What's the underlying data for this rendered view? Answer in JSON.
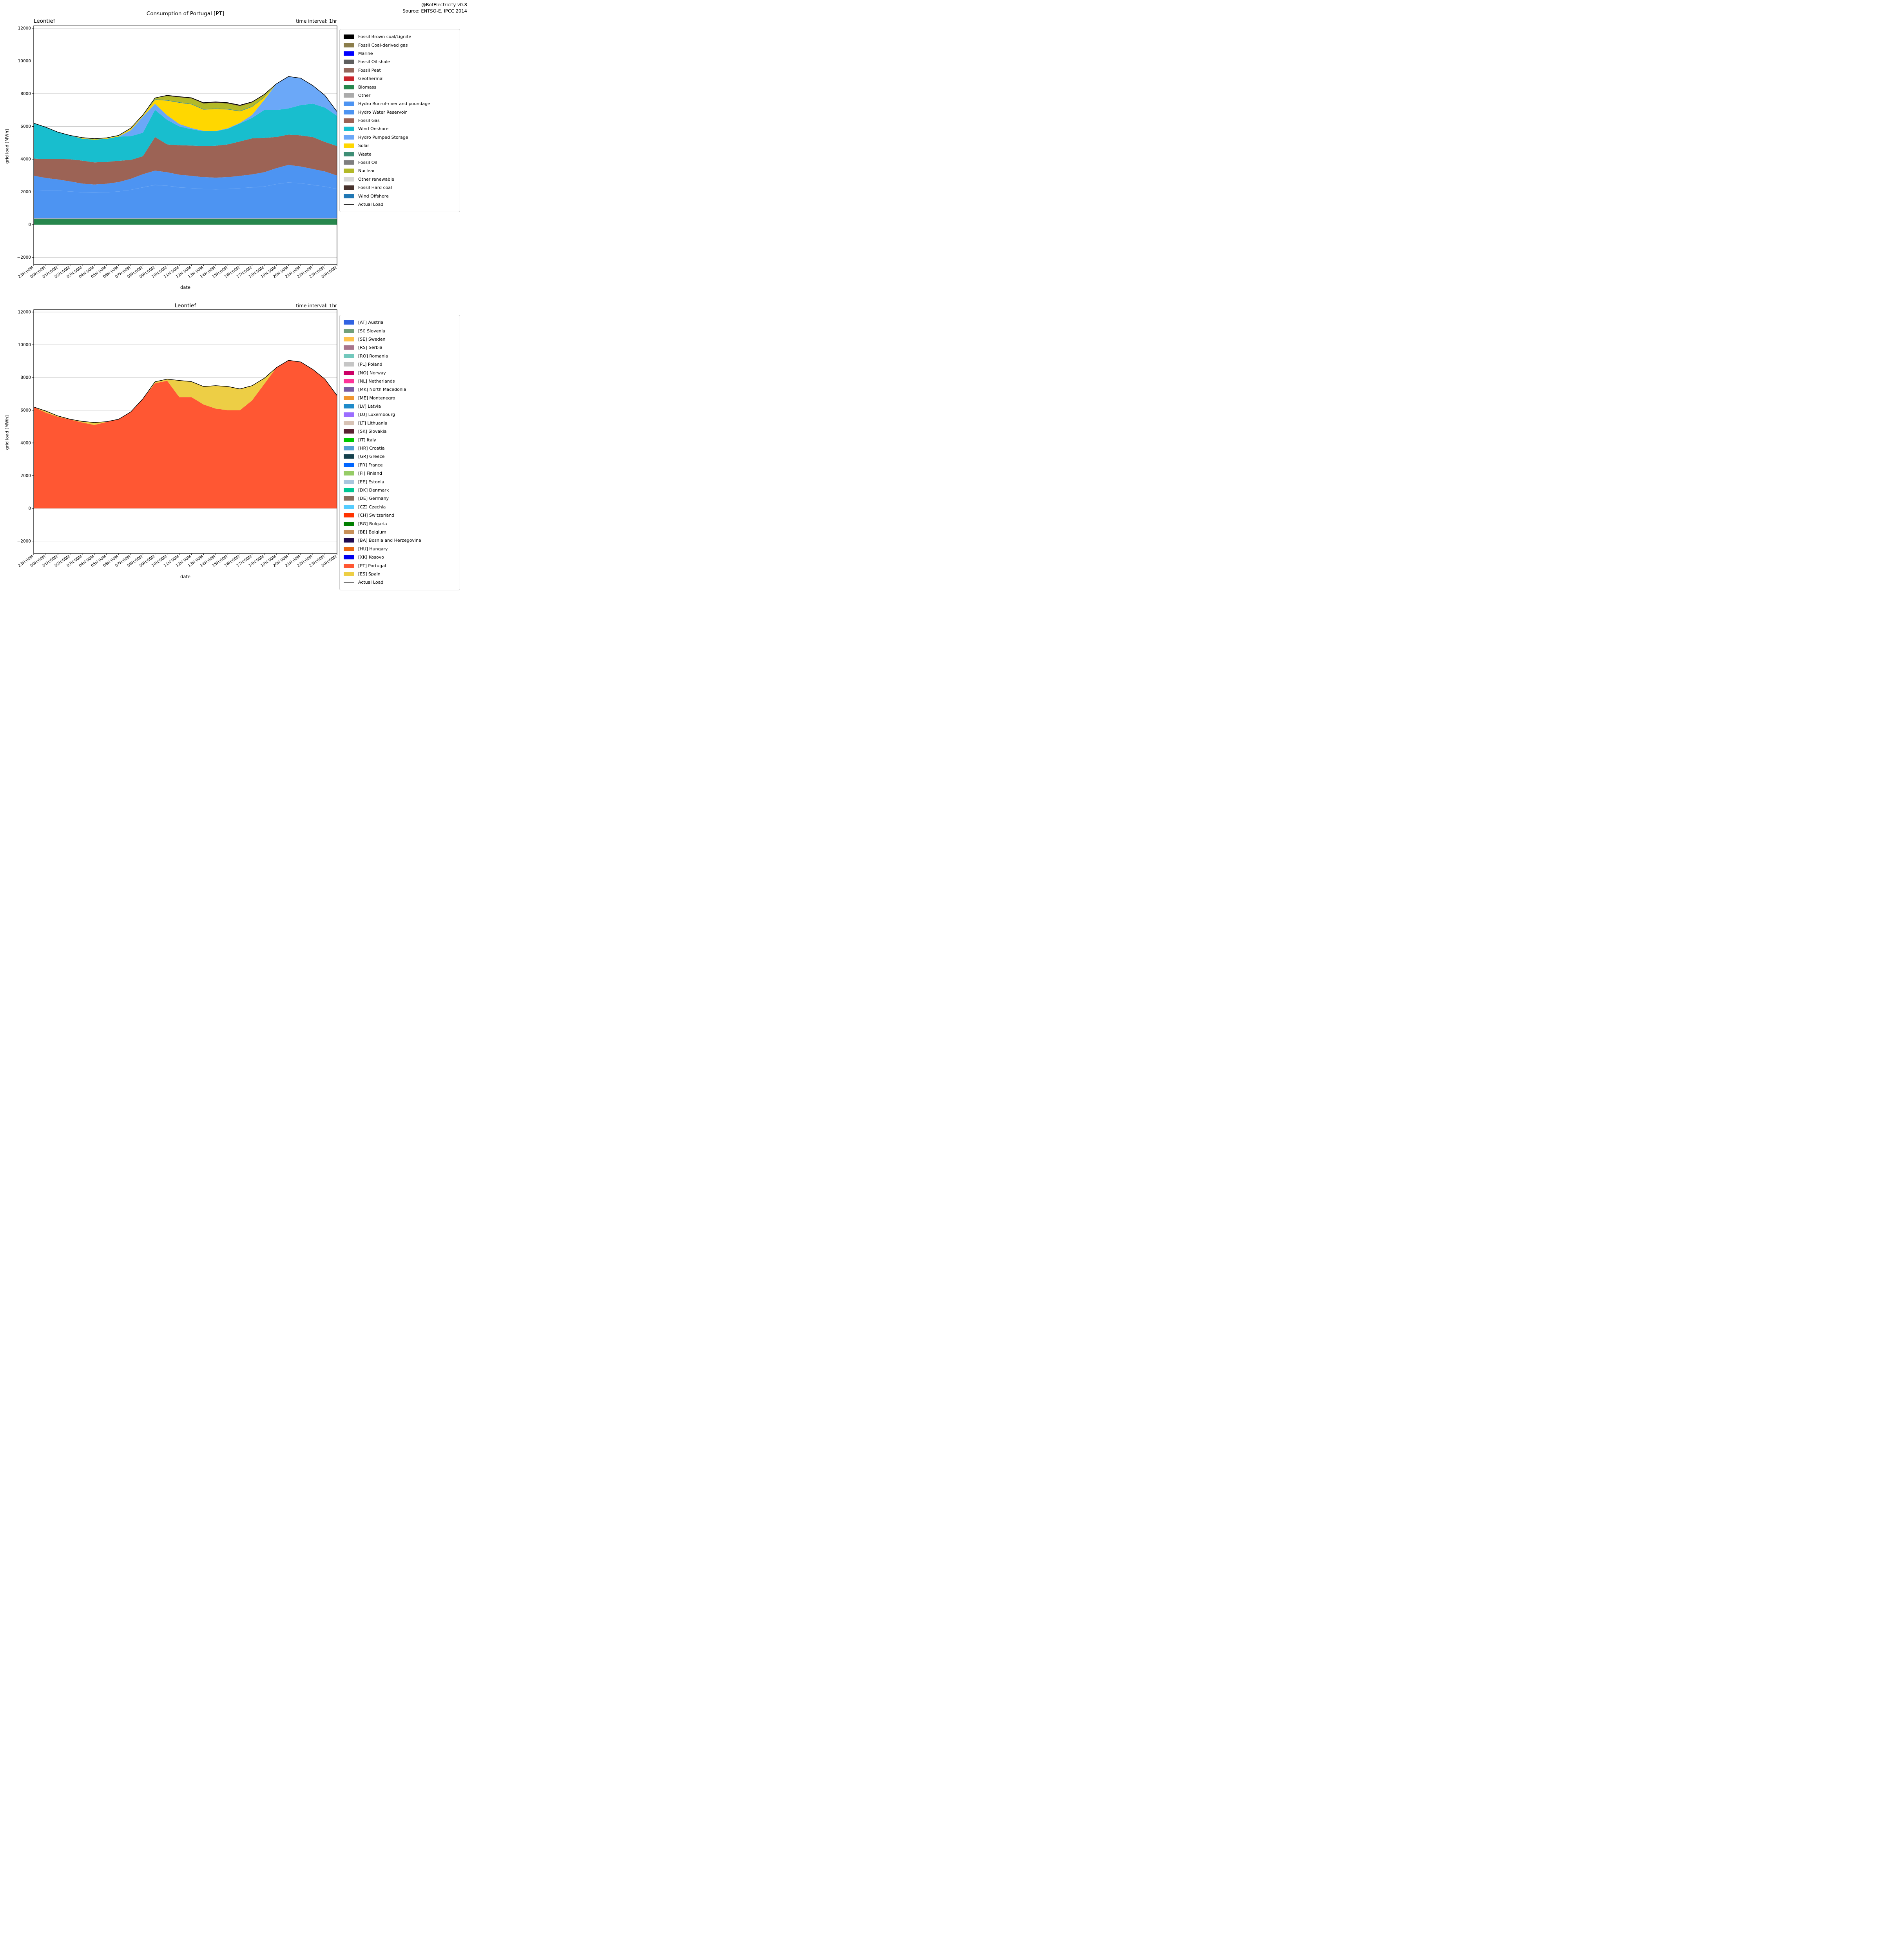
{
  "header": {
    "line1": "@BotElectricity v0.8",
    "line2": "Source: ENTSO-E, IPCC 2014"
  },
  "chart_data": [
    {
      "type": "area",
      "stacked": true,
      "title": "Consumption of Portugal [PT]",
      "subtitle_left": "Leontief",
      "subtitle_right": "time interval: 1hr",
      "xlabel": "date",
      "ylabel": "grid load [MWh]",
      "legend_position": "right",
      "grid": true,
      "ylim": [
        -2450,
        12150
      ],
      "yticks": [
        -2000,
        0,
        2000,
        4000,
        6000,
        8000,
        10000,
        12000
      ],
      "x_labels": [
        "23H:00M",
        "00H:00M",
        "01H:00M",
        "02H:00M",
        "03H:00M",
        "04H:00M",
        "05H:00M",
        "06H:00M",
        "07H:00M",
        "08H:00M",
        "09H:00M",
        "10H:00M",
        "11H:00M",
        "12H:00M",
        "13H:00M",
        "14H:00M",
        "15H:00M",
        "16H:00M",
        "17H:00M",
        "18H:00M",
        "19H:00M",
        "20H:00M",
        "21H:00M",
        "22H:00M",
        "23H:00M",
        "00H:00M"
      ],
      "series": [
        {
          "name": "Fossil Brown coal/Lignite",
          "color": "#000000",
          "values": 0
        },
        {
          "name": "Fossil Coal-derived gas",
          "color": "#8B7D4B",
          "values": 0
        },
        {
          "name": "Marine",
          "color": "#0000FF",
          "values": 0
        },
        {
          "name": "Fossil Oil shale",
          "color": "#5E5E5E",
          "values": 0
        },
        {
          "name": "Fossil Peat",
          "color": "#95675C",
          "values": 0
        },
        {
          "name": "Geothermal",
          "color": "#C9252C",
          "values": 0
        },
        {
          "name": "Biomass",
          "color": "#27874D",
          "values": 340
        },
        {
          "name": "Other",
          "color": "#ABABAB",
          "values": 40
        },
        {
          "name": "Hydro Run-of-river and poundage",
          "color": "#4D94F2",
          "edge": "#8FBCF5",
          "values": [
            1750,
            1720,
            1700,
            1650,
            1600,
            1580,
            1600,
            1650,
            1750,
            1900,
            2050,
            2000,
            1900,
            1850,
            1800,
            1780,
            1800,
            1850,
            1900,
            1950,
            2100,
            2200,
            2150,
            2050,
            1950,
            1800
          ]
        },
        {
          "name": "Hydro Water Reservoir",
          "color": "#4D94F2",
          "values": [
            860,
            750,
            680,
            610,
            530,
            490,
            520,
            570,
            670,
            800,
            870,
            820,
            770,
            750,
            720,
            710,
            720,
            750,
            790,
            870,
            970,
            1070,
            1020,
            970,
            920,
            820
          ]
        },
        {
          "name": "Fossil Gas",
          "color": "#9C6355",
          "values": [
            1050,
            1150,
            1250,
            1350,
            1400,
            1350,
            1330,
            1300,
            1150,
            1100,
            2050,
            1700,
            1800,
            1850,
            1900,
            1950,
            2000,
            2100,
            2200,
            2100,
            1900,
            1850,
            1900,
            1950,
            1800,
            1800
          ]
        },
        {
          "name": "Wind Onshore",
          "color": "#18BECE",
          "values": [
            2160,
            1950,
            1640,
            1460,
            1340,
            1390,
            1410,
            1480,
            1450,
            1430,
            1660,
            1500,
            1150,
            1000,
            900,
            880,
            950,
            1100,
            1250,
            1700,
            1650,
            1600,
            1850,
            2040,
            2100,
            1850
          ]
        },
        {
          "name": "Hydro Pumped Storage",
          "color": "#6BA8F8",
          "values": [
            0,
            0,
            0,
            0,
            0,
            0,
            0,
            0,
            370,
            1000,
            370,
            280,
            150,
            70,
            30,
            20,
            40,
            40,
            180,
            620,
            1600,
            1950,
            1650,
            1110,
            750,
            250
          ]
        },
        {
          "name": "Solar",
          "color": "#FFD700",
          "edge": "#9FB8D8",
          "values": [
            0,
            0,
            0,
            0,
            30,
            40,
            40,
            50,
            100,
            60,
            250,
            900,
            1300,
            1450,
            1300,
            1350,
            1150,
            700,
            500,
            150,
            0,
            0,
            0,
            0,
            0,
            0
          ]
        },
        {
          "name": "Waste",
          "color": "#3E8E75",
          "values": [
            0,
            0,
            0,
            0,
            0,
            0,
            0,
            0,
            0,
            0,
            30,
            30,
            30,
            30,
            30,
            30,
            30,
            30,
            30,
            30,
            0,
            0,
            0,
            0,
            0,
            0
          ]
        },
        {
          "name": "Fossil Oil",
          "color": "#7F7F7F",
          "values": 0
        },
        {
          "name": "Nuclear",
          "color": "#B3B928",
          "values": [
            0,
            0,
            0,
            0,
            40,
            20,
            20,
            20,
            30,
            30,
            80,
            250,
            300,
            330,
            340,
            350,
            330,
            300,
            230,
            120,
            0,
            0,
            0,
            0,
            0,
            0
          ]
        },
        {
          "name": "Other renewable",
          "color": "#D9D9D9",
          "values": 0
        },
        {
          "name": "Fossil Hard coal",
          "color": "#47322D",
          "values": [
            0,
            0,
            0,
            0,
            0,
            0,
            0,
            0,
            0,
            0,
            0,
            40,
            40,
            40,
            50,
            50,
            50,
            50,
            40,
            30,
            0,
            0,
            0,
            0,
            0,
            0
          ]
        },
        {
          "name": "Wind Offshore",
          "color": "#2077B4",
          "values": 0
        }
      ],
      "line": {
        "name": "Actual Load",
        "color": "#000000",
        "values": [
          6200,
          5950,
          5650,
          5450,
          5320,
          5250,
          5300,
          5450,
          5900,
          6700,
          7740,
          7900,
          7820,
          7750,
          7450,
          7500,
          7450,
          7300,
          7500,
          7950,
          8600,
          9050,
          8950,
          8500,
          7900,
          6900
        ]
      }
    },
    {
      "type": "area",
      "stacked": true,
      "title": "Leontief",
      "subtitle_left": "",
      "subtitle_right": "time interval: 1hr",
      "xlabel": "date",
      "ylabel": "grid load [MWh]",
      "legend_position": "right",
      "grid": true,
      "ylim": [
        -2750,
        12150
      ],
      "yticks": [
        -2000,
        0,
        2000,
        4000,
        6000,
        8000,
        10000,
        12000
      ],
      "x_labels": [
        "23H:00M",
        "00H:00M",
        "01H:00M",
        "02H:00M",
        "03H:00M",
        "04H:00M",
        "05H:00M",
        "06H:00M",
        "07H:00M",
        "08H:00M",
        "09H:00M",
        "10H:00M",
        "11H:00M",
        "12H:00M",
        "13H:00M",
        "14H:00M",
        "15H:00M",
        "16H:00M",
        "17H:00M",
        "18H:00M",
        "19H:00M",
        "20H:00M",
        "21H:00M",
        "22H:00M",
        "23H:00M",
        "00H:00M"
      ],
      "series": [
        {
          "name": "[AT] Austria",
          "color": "#3163E2",
          "values": 0
        },
        {
          "name": "[SI] Slovenia",
          "color": "#73A07A",
          "values": 0
        },
        {
          "name": "[SE] Sweden",
          "color": "#FFC34D",
          "values": 0
        },
        {
          "name": "[RS] Serbia",
          "color": "#A8758C",
          "values": 0
        },
        {
          "name": "[RO] Romania",
          "color": "#72C8BC",
          "values": 0
        },
        {
          "name": "[PL] Poland",
          "color": "#C6C6C6",
          "values": 0
        },
        {
          "name": "[NO] Norway",
          "color": "#CC0066",
          "values": 0
        },
        {
          "name": "[NL] Netherlands",
          "color": "#FF3399",
          "values": 0
        },
        {
          "name": "[MK] North Macedonia",
          "color": "#7A5CA3",
          "values": 0
        },
        {
          "name": "[ME] Montenegro",
          "color": "#F09630",
          "values": 0
        },
        {
          "name": "[LV] Latvia",
          "color": "#1F8AC9",
          "values": 0
        },
        {
          "name": "[LU] Luxembourg",
          "color": "#9B6DFF",
          "values": 0
        },
        {
          "name": "[LT] Lithuania",
          "color": "#D8C3B5",
          "values": 0
        },
        {
          "name": "[SK] Slovakia",
          "color": "#5A2231",
          "values": 0
        },
        {
          "name": "[IT] Italy",
          "color": "#00C800",
          "values": 0
        },
        {
          "name": "[HR] Croatia",
          "color": "#54A0D4",
          "values": 0
        },
        {
          "name": "[GR] Greece",
          "color": "#15404C",
          "values": 0
        },
        {
          "name": "[FR] France",
          "color": "#0066FF",
          "values": 0
        },
        {
          "name": "[FI] Finland",
          "color": "#96CC66",
          "values": 0
        },
        {
          "name": "[EE] Estonia",
          "color": "#A9C6DE",
          "values": 0
        },
        {
          "name": "[DK] Denmark",
          "color": "#00C793",
          "values": 0
        },
        {
          "name": "[DE] Germany",
          "color": "#8A6E5E",
          "values": 0
        },
        {
          "name": "[CZ] Czechia",
          "color": "#55CCFF",
          "values": 0
        },
        {
          "name": "[CH] Switzerland",
          "color": "#FF3300",
          "values": 0
        },
        {
          "name": "[BG] Bulgaria",
          "color": "#007F00",
          "values": 0
        },
        {
          "name": "[BE] Belgium",
          "color": "#C89058",
          "values": 0
        },
        {
          "name": "[BA] Bosnia and Herzegovina",
          "color": "#1F0A50",
          "values": 0
        },
        {
          "name": "[HU] Hungary",
          "color": "#E86510",
          "values": 0
        },
        {
          "name": "[XK] Kosovo",
          "color": "#0000EE",
          "values": 0
        },
        {
          "name": "[PT] Portugal",
          "color": "#FF5733",
          "values": [
            6200,
            5850,
            5600,
            5430,
            5250,
            5100,
            5280,
            5450,
            5900,
            6700,
            7650,
            7800,
            6800,
            6800,
            6350,
            6100,
            6000,
            6000,
            6600,
            7600,
            8600,
            9050,
            8950,
            8500,
            7900,
            6900
          ]
        },
        {
          "name": "[ES] Spain",
          "color": "#EDCE45",
          "values": [
            0,
            100,
            50,
            20,
            70,
            150,
            20,
            0,
            0,
            0,
            90,
            100,
            1020,
            950,
            1100,
            1400,
            1450,
            1300,
            900,
            350,
            0,
            0,
            0,
            0,
            0,
            0
          ]
        }
      ],
      "line": {
        "name": "Actual Load",
        "color": "#000000",
        "values": [
          6200,
          5950,
          5650,
          5450,
          5320,
          5250,
          5300,
          5450,
          5900,
          6700,
          7740,
          7900,
          7820,
          7750,
          7450,
          7500,
          7450,
          7300,
          7500,
          7950,
          8600,
          9050,
          8950,
          8500,
          7900,
          6900
        ]
      }
    }
  ]
}
